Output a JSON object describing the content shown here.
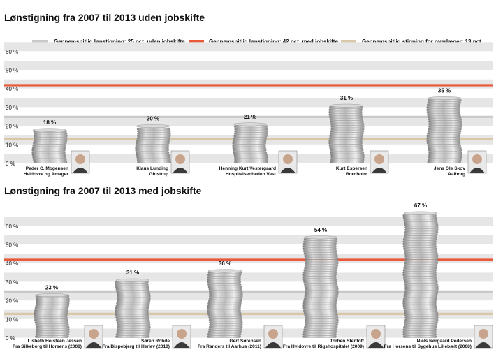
{
  "colors": {
    "band": "#e6e6e6",
    "avg_without": "#c8c8c8",
    "avg_with": "#e85a3a",
    "avg_doctors": "#d8c8a8",
    "coin_light": "#d9d9d9",
    "coin_dark": "#8a8a8a"
  },
  "legend": [
    {
      "label": "Gennemsnitlig lønstigning: 25 pct. uden jobskifte",
      "color": "#c8c8c8"
    },
    {
      "label": "Gennemsnitlig lønstigning: 42 pct. med jobskifte",
      "color": "#e85a3a"
    },
    {
      "label": "Gennemsnitlig stigning for overlæger: 13 pct.",
      "color": "#d8c8a8"
    }
  ],
  "chart_data": [
    {
      "type": "bar",
      "title": "Lønstigning fra 2007 til 2013 uden jobskifte",
      "yticks": [
        "0 %",
        "10 %",
        "20 %",
        "30 %",
        "40 %",
        "50 %",
        "60 %"
      ],
      "ylim": [
        0,
        60
      ],
      "reference_lines": [
        {
          "name": "Gennemsnitlig lønstigning: 25 pct. uden jobskifte",
          "value": 25
        },
        {
          "name": "Gennemsnitlig lønstigning: 42 pct. med jobskifte",
          "value": 42
        },
        {
          "name": "Gennemsnitlig stigning for overlæger: 13 pct.",
          "value": 13
        }
      ],
      "bars": [
        {
          "value": 18,
          "value_label": "18 %",
          "name": "Peder C. Mogensen",
          "place": "Hvidovre og Amager",
          "icon": "portrait-icon"
        },
        {
          "value": 20,
          "value_label": "20 %",
          "name": "Klaus Lunding",
          "place": "Glostrup",
          "icon": "portrait-icon"
        },
        {
          "value": 21,
          "value_label": "21 %",
          "name": "Henning Kurt Vestergaard",
          "place": "Hospitalsenheden Vest",
          "icon": "portrait-icon"
        },
        {
          "value": 31,
          "value_label": "31 %",
          "name": "Kurt Espersen",
          "place": "Bornholm",
          "icon": "portrait-icon"
        },
        {
          "value": 35,
          "value_label": "35 %",
          "name": "Jens Ole Skov",
          "place": "Aalborg",
          "icon": "portrait-icon"
        }
      ]
    },
    {
      "type": "bar",
      "title": "Lønstigning fra 2007 til 2013 med jobskifte",
      "yticks": [
        "0 %",
        "10 %",
        "20 %",
        "30 %",
        "40 %",
        "50 %",
        "60 %"
      ],
      "ylim": [
        0,
        70
      ],
      "reference_lines": [
        {
          "name": "Gennemsnitlig lønstigning: 25 pct. uden jobskifte",
          "value": 25
        },
        {
          "name": "Gennemsnitlig lønstigning: 42 pct. med jobskifte",
          "value": 42
        },
        {
          "name": "Gennemsnitlig stigning for overlæger: 13 pct.",
          "value": 13
        }
      ],
      "bars": [
        {
          "value": 23,
          "value_label": "23 %",
          "name": "Lisbeth Holsteen Jessen",
          "place": "Fra Silkeborg til Horsens (2008)",
          "icon": "portrait-icon"
        },
        {
          "value": 31,
          "value_label": "31 %",
          "name": "Søren Rohde",
          "place": "Fra Bispebjerg til Herlev (2010)",
          "icon": "portrait-icon"
        },
        {
          "value": 36,
          "value_label": "36 %",
          "name": "Gert Sørensen",
          "place": "Fra Randers til Aarhus (2011)",
          "icon": "portrait-icon"
        },
        {
          "value": 54,
          "value_label": "54 %",
          "name": "Torben Stentoft",
          "place": "Fra Hvidovre til Rigshospitalet (2009)",
          "icon": "portrait-icon"
        },
        {
          "value": 67,
          "value_label": "67 %",
          "name": "Niels Nørgaard Pedersen",
          "place": "Fra Horsens til Sygehus Lillebælt (2008)",
          "icon": "portrait-icon"
        }
      ]
    }
  ]
}
